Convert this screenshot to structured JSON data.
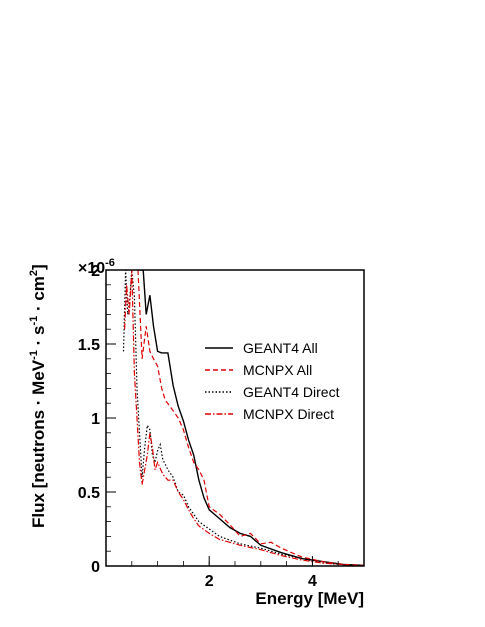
{
  "chart_data": {
    "type": "line",
    "xlabel": "Energy [MeV]",
    "ylabel_parts": [
      "Flux [neutrons",
      " · MeV",
      "-1",
      " · s",
      "-1",
      " · cm",
      "2",
      "]"
    ],
    "y_multiplier": "×10",
    "y_multiplier_exp": "-6",
    "xlim": [
      0,
      5.0
    ],
    "ylim": [
      0,
      2.0
    ],
    "x_ticks": [
      2,
      4
    ],
    "x_tick_labels": [
      "2",
      "4"
    ],
    "y_ticks": [
      0,
      0.5,
      1,
      1.5,
      2
    ],
    "y_tick_labels": [
      "0",
      "0.5",
      "1",
      "1.5",
      "2"
    ],
    "legend_position": "top-right",
    "series": [
      {
        "name": "GEANT4 All",
        "color": "#000000",
        "style": "solid",
        "x": [
          0.65,
          0.72,
          0.78,
          0.85,
          0.92,
          1.0,
          1.08,
          1.2,
          1.3,
          1.4,
          1.5,
          1.6,
          1.7,
          1.8,
          1.9,
          2.0,
          2.2,
          2.4,
          2.6,
          2.8,
          3.0,
          3.4,
          3.8,
          4.2,
          4.6,
          5.0
        ],
        "y": [
          2.0,
          2.0,
          1.7,
          1.83,
          1.62,
          1.45,
          1.44,
          1.44,
          1.22,
          1.08,
          0.98,
          0.85,
          0.75,
          0.58,
          0.46,
          0.38,
          0.32,
          0.26,
          0.22,
          0.2,
          0.14,
          0.09,
          0.05,
          0.03,
          0.01,
          0.005
        ]
      },
      {
        "name": "MCNPX All",
        "color": "#e00000",
        "style": "dashed",
        "x": [
          0.62,
          0.7,
          0.78,
          0.85,
          0.92,
          1.0,
          1.08,
          1.15,
          1.3,
          1.4,
          1.5,
          1.6,
          1.7,
          1.8,
          1.9,
          2.0,
          2.2,
          2.4,
          2.6,
          2.8,
          3.0,
          3.2,
          3.4,
          3.8,
          4.2,
          4.6,
          5.0
        ],
        "y": [
          2.0,
          1.4,
          1.62,
          1.45,
          1.4,
          1.35,
          1.2,
          1.12,
          1.05,
          1.0,
          0.92,
          0.8,
          0.7,
          0.65,
          0.58,
          0.4,
          0.35,
          0.28,
          0.2,
          0.22,
          0.15,
          0.16,
          0.12,
          0.06,
          0.03,
          0.01,
          0.005
        ]
      },
      {
        "name": "GEANT4 Direct",
        "color": "#000000",
        "style": "dotted",
        "x": [
          0.34,
          0.38,
          0.42,
          0.45,
          0.5,
          0.55,
          0.6,
          0.65,
          0.7,
          0.75,
          0.8,
          0.85,
          0.9,
          0.95,
          1.0,
          1.05,
          1.1,
          1.2,
          1.3,
          1.4,
          1.5,
          1.6,
          1.7,
          1.8,
          2.0,
          2.2,
          2.6,
          3.0,
          3.4,
          3.8,
          4.2,
          4.6
        ],
        "y": [
          1.45,
          2.0,
          1.7,
          1.75,
          2.0,
          1.82,
          1.2,
          0.9,
          0.6,
          0.8,
          0.95,
          0.92,
          0.75,
          0.7,
          0.78,
          0.82,
          0.72,
          0.65,
          0.6,
          0.5,
          0.48,
          0.4,
          0.35,
          0.3,
          0.25,
          0.2,
          0.15,
          0.12,
          0.08,
          0.05,
          0.02,
          0.01
        ]
      },
      {
        "name": "MCNPX Direct",
        "color": "#e00000",
        "style": "dashdot",
        "x": [
          0.36,
          0.4,
          0.45,
          0.5,
          0.55,
          0.6,
          0.65,
          0.7,
          0.75,
          0.8,
          0.85,
          0.9,
          0.95,
          1.0,
          1.1,
          1.2,
          1.3,
          1.4,
          1.5,
          1.6,
          1.7,
          1.8,
          2.0,
          2.2,
          2.6,
          3.0,
          3.4,
          3.8,
          4.2,
          4.6
        ],
        "y": [
          1.6,
          1.9,
          1.7,
          2.0,
          1.3,
          1.0,
          0.7,
          0.55,
          0.65,
          0.75,
          0.9,
          0.8,
          0.65,
          0.7,
          0.62,
          0.58,
          0.58,
          0.5,
          0.45,
          0.38,
          0.32,
          0.27,
          0.22,
          0.18,
          0.14,
          0.11,
          0.07,
          0.04,
          0.02,
          0.01
        ]
      }
    ]
  }
}
